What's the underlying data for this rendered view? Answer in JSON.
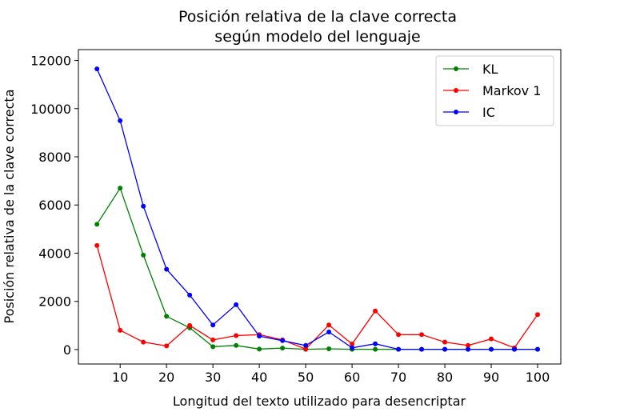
{
  "chart_data": {
    "type": "line",
    "title": [
      "Posición relativa de la clave correcta",
      "según modelo del lenguaje"
    ],
    "xlabel": "Longitud del texto utilizado para desencriptar",
    "ylabel": "Posición relativa de la clave correcta",
    "xlim": [
      1,
      105
    ],
    "ylim": [
      -600,
      12450
    ],
    "xticks": [
      10,
      20,
      30,
      40,
      50,
      60,
      70,
      80,
      90,
      100
    ],
    "yticks": [
      0,
      2000,
      4000,
      6000,
      8000,
      10000,
      12000
    ],
    "x": [
      5,
      10,
      15,
      20,
      25,
      30,
      35,
      40,
      45,
      50,
      55,
      60,
      65,
      70,
      75,
      80,
      85,
      90,
      95,
      100
    ],
    "series": [
      {
        "name": "KL",
        "color": "#008000",
        "values": [
          5200,
          6700,
          3920,
          1380,
          900,
          120,
          170,
          20,
          60,
          10,
          30,
          10,
          10,
          10,
          10,
          10,
          10,
          10,
          10,
          10
        ]
      },
      {
        "name": "Markov 1",
        "color": "#ff0000",
        "values": [
          4320,
          800,
          310,
          150,
          1000,
          400,
          580,
          620,
          400,
          20,
          1020,
          230,
          1600,
          620,
          620,
          310,
          170,
          440,
          70,
          1450
        ]
      },
      {
        "name": "IC",
        "color": "#0000ff",
        "values": [
          11650,
          9500,
          5950,
          3330,
          2260,
          1020,
          1860,
          560,
          370,
          170,
          730,
          70,
          240,
          10,
          10,
          10,
          10,
          10,
          10,
          10
        ]
      }
    ],
    "legend_position": "top-right",
    "grid": false
  }
}
